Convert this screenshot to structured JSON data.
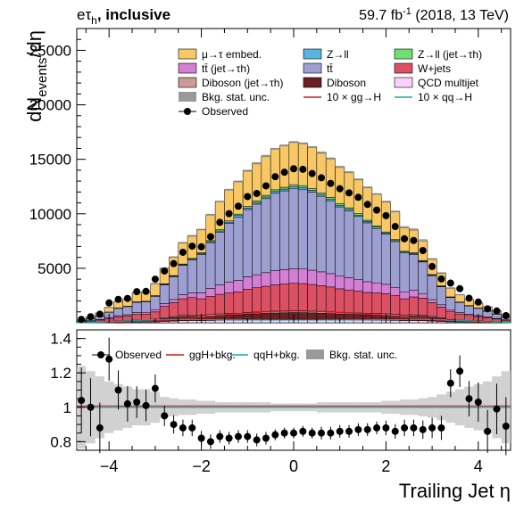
{
  "header": {
    "channel_pre": "eτ",
    "channel_sub": "h",
    "channel_post": ", inclusive",
    "lumi_pre": "59.7 fb",
    "lumi_sup": "-1",
    "lumi_post": " (2018, 13 TeV)"
  },
  "legend_top": [
    {
      "label": "μ→τ embed.",
      "color": "#f8c867",
      "kind": "box"
    },
    {
      "label": "Z→ll",
      "color": "#5ab3e0",
      "kind": "box"
    },
    {
      "label": "Z→ll (jet→τh)",
      "color": "#6fdf6f",
      "kind": "box"
    },
    {
      "label": "tt̄ (jet→τh)",
      "color": "#d37fd3",
      "kind": "box"
    },
    {
      "label": "tt̄",
      "color": "#9d9fd1",
      "kind": "box"
    },
    {
      "label": "W+jets",
      "color": "#dc5063",
      "kind": "box"
    },
    {
      "label": "Diboson (jet→τh)",
      "color": "#c99a97",
      "kind": "box"
    },
    {
      "label": "Diboson",
      "color": "#6b2026",
      "kind": "box"
    },
    {
      "label": "QCD multijet",
      "color": "#fbd0fb",
      "kind": "box"
    },
    {
      "label": "Bkg. stat. unc.",
      "color": "#999999",
      "kind": "box"
    },
    {
      "label": "10 × gg→H",
      "color": "#cc1a1a",
      "kind": "line"
    },
    {
      "label": "10 × qq→H",
      "color": "#1aa899",
      "kind": "line"
    },
    {
      "label": "Observed",
      "color": "#000000",
      "kind": "marker"
    }
  ],
  "legend_ratio": [
    {
      "label": "Observed",
      "color": "#000000",
      "kind": "marker"
    },
    {
      "label": "ggH+bkg.",
      "color": "#cc1a1a",
      "kind": "line"
    },
    {
      "label": "qqH+bkg.",
      "color": "#1aa899",
      "kind": "line"
    },
    {
      "label": "Bkg. stat. unc.",
      "color": "#999999",
      "kind": "box"
    }
  ],
  "chart_data": {
    "type": "bar",
    "stacked": true,
    "xlabel": "Trailing Jet  η",
    "ylabel": "dN_events/dη",
    "xlim": [
      -4.7,
      4.7
    ],
    "ylim": [
      0,
      27000
    ],
    "ratio_ylim": [
      0.75,
      1.45
    ],
    "x_ticks": [
      -4,
      -2,
      0,
      2,
      4
    ],
    "y_ticks": [
      5000,
      10000,
      15000,
      20000,
      25000
    ],
    "ratio_ticks": [
      0.8,
      1,
      1.2,
      1.4
    ],
    "bin_edges": [
      -4.7,
      -4.5,
      -4.3,
      -4.1,
      -3.9,
      -3.7,
      -3.5,
      -3.3,
      -3.1,
      -2.9,
      -2.7,
      -2.5,
      -2.3,
      -2.1,
      -1.9,
      -1.7,
      -1.5,
      -1.3,
      -1.1,
      -0.9,
      -0.7,
      -0.5,
      -0.3,
      -0.1,
      0.1,
      0.3,
      0.5,
      0.7,
      0.9,
      1.1,
      1.3,
      1.5,
      1.7,
      1.9,
      2.1,
      2.3,
      2.5,
      2.7,
      2.9,
      3.1,
      3.3,
      3.5,
      3.7,
      3.9,
      4.1,
      4.3,
      4.5,
      4.7
    ],
    "series": [
      {
        "name": "QCD multijet",
        "color": "#fbd0fb",
        "values": [
          8,
          14,
          24,
          36,
          48,
          56,
          68,
          72,
          86,
          128,
          156,
          190,
          200,
          190,
          210,
          230,
          245,
          245,
          266,
          277,
          289,
          300,
          306,
          312,
          310,
          303,
          293,
          283,
          269,
          260,
          250,
          240,
          236,
          230,
          215,
          190,
          205,
          195,
          160,
          124,
          87,
          70,
          58,
          49,
          40,
          30,
          20
        ]
      },
      {
        "name": "Diboson",
        "color": "#6b2026",
        "values": [
          15,
          28,
          45,
          72,
          99,
          110,
          140,
          145,
          182,
          260,
          320,
          380,
          400,
          380,
          420,
          450,
          470,
          490,
          531,
          555,
          578,
          600,
          612,
          624,
          620,
          606,
          587,
          566,
          537,
          519,
          500,
          480,
          472,
          460,
          430,
          380,
          410,
          390,
          320,
          248,
          174,
          140,
          116,
          99,
          80,
          59,
          40
        ]
      },
      {
        "name": "Diboson (jet→τh)",
        "color": "#c99a97",
        "values": [
          5,
          9,
          15,
          24,
          33,
          38,
          47,
          49,
          60,
          78,
          95,
          115,
          120,
          114,
          126,
          135,
          141,
          147,
          160,
          166,
          173,
          180,
          184,
          187,
          186,
          182,
          176,
          170,
          161,
          156,
          150,
          144,
          142,
          138,
          129,
          114,
          123,
          117,
          96,
          75,
          52,
          42,
          35,
          30,
          24,
          18,
          12
        ]
      },
      {
        "name": "W+jets",
        "color": "#dc5063",
        "values": [
          55,
          103,
          165,
          264,
          363,
          406,
          515,
          529,
          668,
          1036,
          1277,
          1518,
          1597,
          1517,
          1677,
          1797,
          1876,
          1956,
          2125,
          2218,
          2311,
          2400,
          2449,
          2495,
          2479,
          2424,
          2347,
          2265,
          2150,
          2077,
          2000,
          1920,
          1886,
          1839,
          1717,
          1518,
          1636,
          1557,
          1276,
          992,
          696,
          558,
          465,
          396,
          319,
          237,
          160
        ]
      },
      {
        "name": "tt̄ (jet→τh)",
        "color": "#d37fd3",
        "values": [
          18,
          33,
          53,
          84,
          116,
          130,
          165,
          169,
          214,
          260,
          280,
          380,
          420,
          550,
          720,
          860,
          980,
          1060,
          1131,
          1188,
          1246,
          1300,
          1323,
          1348,
          1339,
          1310,
          1270,
          1224,
          1162,
          1121,
          1050,
          985,
          925,
          860,
          760,
          600,
          600,
          420,
          270,
          213,
          150,
          120,
          100,
          85,
          69,
          51,
          35
        ]
      },
      {
        "name": "tt̄",
        "color": "#9d9fd1",
        "values": [
          100,
          188,
          301,
          482,
          662,
          741,
          940,
          965,
          1218,
          1727,
          2102,
          2677,
          3019,
          3524,
          4200,
          4850,
          5400,
          5810,
          6178,
          6484,
          6791,
          7100,
          7236,
          7370,
          7321,
          7162,
          6937,
          6693,
          6356,
          6137,
          5800,
          5400,
          5000,
          4600,
          4200,
          3600,
          3300,
          2900,
          2200,
          1654,
          1159,
          930,
          774,
          660,
          532,
          394,
          267
        ]
      },
      {
        "name": "Z→ll",
        "color": "#5ab3e0",
        "values": [
          3,
          5,
          8,
          12,
          17,
          19,
          24,
          24,
          31,
          43,
          52,
          66,
          74,
          80,
          94,
          108,
          121,
          131,
          140,
          147,
          154,
          161,
          164,
          167,
          166,
          162,
          157,
          152,
          144,
          139,
          131,
          121,
          113,
          103,
          94,
          80,
          78,
          68,
          51,
          41,
          29,
          23,
          19,
          17,
          13,
          10,
          7
        ]
      },
      {
        "name": "Z→ll (jet→τh)",
        "color": "#6fdf6f",
        "values": [
          3,
          5,
          8,
          12,
          17,
          19,
          24,
          24,
          31,
          43,
          52,
          66,
          74,
          80,
          94,
          108,
          121,
          131,
          140,
          147,
          154,
          161,
          164,
          167,
          166,
          162,
          157,
          152,
          144,
          139,
          131,
          121,
          113,
          103,
          94,
          80,
          78,
          68,
          51,
          41,
          29,
          23,
          19,
          17,
          13,
          10,
          7
        ]
      },
      {
        "name": "μ→τ embed.",
        "color": "#f8c867",
        "values": [
          90,
          170,
          272,
          436,
          598,
          670,
          850,
          873,
          1101,
          1426,
          1698,
          1951,
          2074,
          2122,
          2371,
          2594,
          2852,
          2995,
          3282,
          3453,
          3607,
          3760,
          3840,
          3916,
          3892,
          3809,
          3689,
          3562,
          3385,
          3274,
          3148,
          3010,
          2923,
          2781,
          2541,
          2140,
          2081,
          1795,
          1429,
          1161,
          799,
          651,
          545,
          466,
          376,
          278,
          188
        ]
      }
    ],
    "total_bkg": [
      297,
      555,
      891,
      1422,
      1953,
      2189,
      2773,
      2850,
      3591,
      5001,
      6032,
      7343,
      7978,
      8557,
      9912,
      11132,
      12206,
      12965,
      13953,
      14635,
      15303,
      15962,
      16278,
      16586,
      16459,
      16120,
      15613,
      15067,
      14308,
      13822,
      13160,
      12431,
      11810,
      11114,
      10220,
      8782,
      8589,
      7584,
      5853,
      4569,
      3204,
      2577,
      2150,
      1838,
      1484,
      1097,
      736
    ],
    "observed": [
      310,
      555,
      784,
      1821,
      2149,
      2233,
      2856,
      2879,
      4002,
      4751,
      5429,
      6465,
      7030,
      6972,
      7899,
      9213,
      10013,
      10699,
      11582,
      11866,
      12564,
      13403,
      13814,
      14134,
      14078,
      13695,
      13302,
      12786,
      12301,
      11917,
      11512,
      10858,
      10340,
      9829,
      8835,
      7709,
      7551,
      6627,
      5160,
      4023,
      3637,
      3126,
      2254,
      1898,
      1280,
      1082,
      654
    ],
    "ratio": [
      1.04,
      1.0,
      0.88,
      1.28,
      1.1,
      1.02,
      1.03,
      1.01,
      1.11,
      0.95,
      0.9,
      0.88,
      0.88,
      0.82,
      0.8,
      0.83,
      0.82,
      0.83,
      0.83,
      0.81,
      0.82,
      0.84,
      0.85,
      0.85,
      0.86,
      0.85,
      0.85,
      0.85,
      0.86,
      0.86,
      0.87,
      0.87,
      0.88,
      0.88,
      0.86,
      0.88,
      0.88,
      0.87,
      0.88,
      0.88,
      1.14,
      1.21,
      1.05,
      1.03,
      0.86,
      0.99,
      0.89
    ],
    "bkg_unc_frac": [
      0.16,
      0.14,
      0.12,
      0.1,
      0.09,
      0.08,
      0.07,
      0.07,
      0.06,
      0.04,
      0.035,
      0.03,
      0.03,
      0.025,
      0.025,
      0.02,
      0.02,
      0.02,
      0.02,
      0.02,
      0.02,
      0.015,
      0.015,
      0.015,
      0.015,
      0.015,
      0.02,
      0.02,
      0.02,
      0.02,
      0.02,
      0.02,
      0.02,
      0.025,
      0.025,
      0.03,
      0.03,
      0.035,
      0.04,
      0.05,
      0.06,
      0.07,
      0.08,
      0.09,
      0.1,
      0.12,
      0.14
    ],
    "signal_ggH_x10": [
      1,
      2,
      3,
      5,
      8,
      9,
      12,
      12,
      16,
      24,
      30,
      38,
      44,
      50,
      58,
      68,
      76,
      84,
      90,
      95,
      100,
      104,
      106,
      108,
      107,
      105,
      102,
      98,
      93,
      90,
      85,
      80,
      74,
      67,
      59,
      50,
      48,
      40,
      30,
      24,
      18,
      14,
      11,
      9,
      7,
      5,
      3
    ],
    "signal_qqH_x10": [
      2,
      4,
      6,
      9,
      14,
      18,
      22,
      24,
      28,
      30,
      30,
      30,
      28,
      28,
      28,
      27,
      26,
      26,
      25,
      25,
      25,
      25,
      25,
      25,
      25,
      25,
      25,
      25,
      25,
      25,
      26,
      26,
      27,
      28,
      28,
      28,
      30,
      30,
      30,
      28,
      24,
      22,
      18,
      14,
      9,
      6,
      4
    ]
  }
}
